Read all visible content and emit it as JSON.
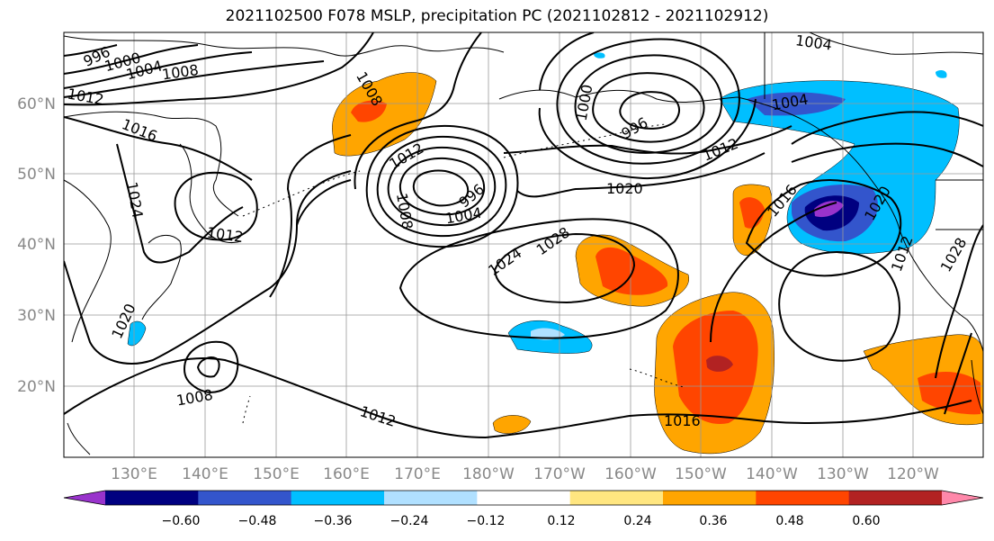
{
  "title": "2021102500 F078 MSLP, precipitation PC (2021102812 - 2021102912)",
  "map": {
    "lat_labels": [
      "60°N",
      "50°N",
      "40°N",
      "30°N",
      "20°N"
    ],
    "lon_labels": [
      "130°E",
      "140°E",
      "150°E",
      "160°E",
      "170°E",
      "180°W",
      "170°W",
      "160°W",
      "150°W",
      "140°W",
      "130°W",
      "120°W"
    ]
  },
  "isobar_labels": {
    "l996a": "996",
    "l1000a": "1000",
    "l1004a": "1004",
    "l1008a": "1008",
    "l1012a": "1012",
    "l1016a": "1016",
    "l1020a": "1020",
    "l1024a": "1024",
    "l1012b": "1012",
    "l1008b": "1008",
    "l1012c": "1012",
    "l1012d": "1012",
    "l1008c": "1008",
    "l1004b": "1004",
    "l996b": "996",
    "l1020b": "1020",
    "l1024b": "1024",
    "l1028a": "1028",
    "l1012e": "1012",
    "l1016b": "1016",
    "l1020c": "1020",
    "l1004c": "1004",
    "l1000b": "1000",
    "l1004d": "1004",
    "l996c": "996",
    "l1028b": "1028",
    "l1016c": "1016",
    "l1012f": "1012",
    "l1008d": "1008"
  },
  "colorbar": {
    "tick_labels": [
      "−0.60",
      "−0.48",
      "−0.36",
      "−0.24",
      "−0.12",
      "0.12",
      "0.24",
      "0.36",
      "0.48",
      "0.60"
    ],
    "colors": [
      "#9933cc",
      "#000080",
      "#3355cc",
      "#00bfff",
      "#b0e0ff",
      "#ffffff",
      "#ffe680",
      "#ffa500",
      "#ff4500",
      "#b22222",
      "#ff88aa"
    ]
  }
}
